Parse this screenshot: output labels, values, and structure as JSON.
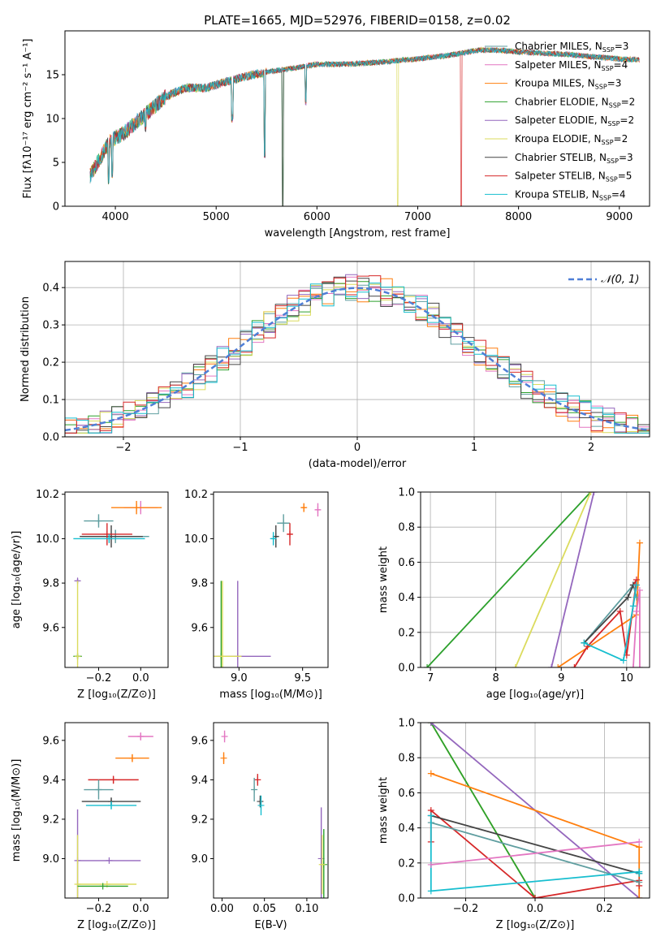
{
  "title": "PLATE=1665, MJD=52976, FIBERID=0158, z=0.02",
  "colors": {
    "Chabrier MILES": "#5f9ea0",
    "Salpeter MILES": "#e377c2",
    "Kroupa MILES": "#ff7f0e",
    "Chabrier ELODIE": "#2ca02c",
    "Salpeter ELODIE": "#9467bd",
    "Kroupa ELODIE": "#dbdb5d",
    "Chabrier STELIB": "#444444",
    "Salpeter STELIB": "#d62728",
    "Kroupa STELIB": "#17becf",
    "gaussian": "#4f7fd6"
  },
  "series_names": [
    "Chabrier MILES",
    "Salpeter MILES",
    "Kroupa MILES",
    "Chabrier ELODIE",
    "Salpeter ELODIE",
    "Kroupa ELODIE",
    "Chabrier STELIB",
    "Salpeter STELIB",
    "Kroupa STELIB"
  ],
  "chart_data": [
    {
      "type": "line",
      "xlabel": "wavelength [Angstrom, rest frame]",
      "ylabel": "Flux [fλ10⁻¹⁷ erg cm⁻² s⁻¹ A⁻¹]",
      "xlim": [
        3500,
        9300
      ],
      "ylim": [
        0,
        20
      ],
      "xticks": [
        4000,
        5000,
        6000,
        7000,
        8000,
        9000
      ],
      "yticks": [
        0,
        5,
        10,
        15
      ],
      "grid": false,
      "legend_position": "right",
      "legend": [
        {
          "name": "Chabrier MILES",
          "label": "Chabrier MILES, N",
          "nssp": "=3"
        },
        {
          "name": "Salpeter MILES",
          "label": "Salpeter MILES, N",
          "nssp": "=4"
        },
        {
          "name": "Kroupa MILES",
          "label": "Kroupa MILES, N",
          "nssp": "=3"
        },
        {
          "name": "Chabrier ELODIE",
          "label": "Chabrier ELODIE, N",
          "nssp": "=2"
        },
        {
          "name": "Salpeter ELODIE",
          "label": "Salpeter ELODIE, N",
          "nssp": "=2"
        },
        {
          "name": "Kroupa ELODIE",
          "label": "Kroupa ELODIE, N",
          "nssp": "=2"
        },
        {
          "name": "Chabrier STELIB",
          "label": "Chabrier STELIB, N",
          "nssp": "=3"
        },
        {
          "name": "Salpeter STELIB",
          "label": "Salpeter STELIB, N",
          "nssp": "=5"
        },
        {
          "name": "Kroupa STELIB",
          "label": "Kroupa STELIB, N",
          "nssp": "=4"
        }
      ],
      "continuum": [
        [
          3750,
          3.5
        ],
        [
          3850,
          5.5
        ],
        [
          3950,
          7.5
        ],
        [
          4000,
          7.8
        ],
        [
          4100,
          8.5
        ],
        [
          4300,
          10.5
        ],
        [
          4500,
          12.5
        ],
        [
          4700,
          13.5
        ],
        [
          4900,
          13.5
        ],
        [
          5100,
          14.2
        ],
        [
          5300,
          14.8
        ],
        [
          5500,
          15.3
        ],
        [
          5800,
          15.8
        ],
        [
          6000,
          16.2
        ],
        [
          6300,
          16.2
        ],
        [
          6600,
          16.4
        ],
        [
          7000,
          16.8
        ],
        [
          7300,
          17.2
        ],
        [
          7600,
          17.8
        ],
        [
          7800,
          17.8
        ],
        [
          8000,
          17.6
        ],
        [
          8500,
          17.3
        ],
        [
          9000,
          16.8
        ],
        [
          9200,
          16.7
        ]
      ],
      "dips": [
        {
          "x": 5160,
          "y": 9.5
        },
        {
          "x": 5480,
          "y": 5.5
        },
        {
          "x": 5660,
          "y": 0.0
        },
        {
          "x": 6800,
          "y": 0.0
        },
        {
          "x": 7430,
          "y": 0.0
        },
        {
          "x": 3935,
          "y": 2.5
        },
        {
          "x": 3970,
          "y": 3.0
        },
        {
          "x": 4300,
          "y": 8.5
        },
        {
          "x": 5890,
          "y": 11.5
        }
      ]
    },
    {
      "type": "histogram",
      "xlabel": "(data-model)/error",
      "ylabel": "Normed distribution",
      "xlim": [
        -2.5,
        2.5
      ],
      "ylim": [
        0,
        0.47
      ],
      "xticks": [
        -2,
        -1,
        0,
        1,
        2
      ],
      "yticks": [
        0.0,
        0.1,
        0.2,
        0.3,
        0.4
      ],
      "grid": true,
      "legend": "𝒩(0, 1)",
      "bin_width": 0.1,
      "gaussian": {
        "mean": 0,
        "sigma": 1
      }
    },
    {
      "type": "errorbar",
      "xlabel": "Z [log₁₀(Z/Z⊙)]",
      "ylabel": "age  [log₁₀(age/yr)]",
      "xlim": [
        -0.36,
        0.13
      ],
      "ylim": [
        9.42,
        10.21
      ],
      "xticks": [
        -0.2,
        0.0
      ],
      "yticks": [
        9.6,
        9.8,
        10.0,
        10.2
      ],
      "points": [
        {
          "series": "Chabrier MILES",
          "x": -0.12,
          "xerr": 0.16,
          "y": 10.01,
          "yerr": 0.03
        },
        {
          "series": "Salpeter MILES",
          "x": 0.0,
          "xerr": 0.08,
          "y": 10.14,
          "yerr": 0.03
        },
        {
          "series": "Kroupa MILES",
          "x": -0.02,
          "xerr": 0.12,
          "y": 10.14,
          "yerr": 0.03
        },
        {
          "series": "Chabrier ELODIE",
          "x": -0.3,
          "xerr": 0.02,
          "y": 9.47,
          "yerr": 0.01
        },
        {
          "series": "Salpeter ELODIE",
          "x": -0.3,
          "xerr": 0.0,
          "y": 9.81,
          "yerr": 0.01
        },
        {
          "series": "Kroupa ELODIE",
          "x": -0.3,
          "xerr": 0.0,
          "y": 9.47,
          "yerr": 0.34
        },
        {
          "series": "Chabrier STELIB",
          "x": -0.14,
          "xerr": 0.15,
          "y": 10.01,
          "yerr": 0.05
        },
        {
          "series": "Salpeter STELIB",
          "x": -0.16,
          "xerr": 0.12,
          "y": 10.02,
          "yerr": 0.05
        },
        {
          "series": "Kroupa STELIB",
          "x": -0.15,
          "xerr": 0.17,
          "y": 10.0,
          "yerr": 0.02
        },
        {
          "series": "Chabrier MILES",
          "x": -0.2,
          "xerr": 0.07,
          "y": 10.08,
          "yerr": 0.03
        }
      ]
    },
    {
      "type": "errorbar",
      "xlabel": "mass [log₁₀(M/M⊙)]",
      "xlim": [
        8.8,
        9.7
      ],
      "ylim": [
        9.42,
        10.21
      ],
      "xticks": [
        9.0,
        9.5
      ],
      "yticks": [
        9.6,
        9.8,
        10.0,
        10.2
      ],
      "points": [
        {
          "series": "Chabrier MILES",
          "x": 9.35,
          "xerr": 0.05,
          "y": 10.07,
          "yerr": 0.04
        },
        {
          "series": "Salpeter MILES",
          "x": 9.62,
          "xerr": 0.02,
          "y": 10.13,
          "yerr": 0.03
        },
        {
          "series": "Kroupa MILES",
          "x": 9.51,
          "xerr": 0.02,
          "y": 10.14,
          "yerr": 0.02
        },
        {
          "series": "Chabrier ELODIE",
          "x": 8.86,
          "xerr": 0.01,
          "y": 9.47,
          "yerr": 0.34
        },
        {
          "series": "Salpeter ELODIE",
          "x": 8.99,
          "xerr": 0.26,
          "y": 9.47,
          "yerr": 0.34
        },
        {
          "series": "Kroupa ELODIE",
          "x": 8.87,
          "xerr": 0.15,
          "y": 9.47,
          "yerr": 0.34
        },
        {
          "series": "Chabrier STELIB",
          "x": 9.29,
          "xerr": 0.02,
          "y": 10.01,
          "yerr": 0.05
        },
        {
          "series": "Salpeter STELIB",
          "x": 9.4,
          "xerr": 0.02,
          "y": 10.02,
          "yerr": 0.05
        },
        {
          "series": "Kroupa STELIB",
          "x": 9.27,
          "xerr": 0.02,
          "y": 10.0,
          "yerr": 0.03
        }
      ]
    },
    {
      "type": "line",
      "xlabel": "age  [log₁₀(age/yr)]",
      "ylabel": "mass weight",
      "xlim": [
        6.85,
        10.35
      ],
      "ylim": [
        0,
        1
      ],
      "xticks": [
        7,
        8,
        9,
        10
      ],
      "yticks": [
        0.0,
        0.2,
        0.4,
        0.6,
        0.8,
        1.0
      ],
      "grid": true,
      "series": [
        {
          "name": "Chabrier ELODIE",
          "x": [
            6.95,
            9.45
          ],
          "y": [
            0.0,
            1.0
          ]
        },
        {
          "name": "Kroupa ELODIE",
          "x": [
            8.3,
            9.45
          ],
          "y": [
            0.0,
            1.0
          ]
        },
        {
          "name": "Salpeter ELODIE",
          "x": [
            8.85,
            9.5
          ],
          "y": [
            0.0,
            1.0
          ]
        },
        {
          "name": "Kroupa MILES",
          "x": [
            8.95,
            10.15,
            10.2
          ],
          "y": [
            0.0,
            0.3,
            0.71
          ]
        },
        {
          "name": "Salpeter STELIB",
          "x": [
            9.2,
            9.4,
            9.9,
            10.0,
            10.15,
            10.1
          ],
          "y": [
            0.0,
            0.12,
            0.32,
            0.07,
            0.5,
            0.47
          ]
        },
        {
          "name": "Chabrier MILES",
          "x": [
            9.35,
            10.1,
            10.15
          ],
          "y": [
            0.14,
            0.47,
            0.4
          ]
        },
        {
          "name": "Chabrier STELIB",
          "x": [
            9.35,
            10.02,
            10.1
          ],
          "y": [
            0.14,
            0.4,
            0.47
          ]
        },
        {
          "name": "Kroupa STELIB",
          "x": [
            9.35,
            9.95,
            10.1,
            10.15
          ],
          "y": [
            0.14,
            0.04,
            0.35,
            0.47
          ]
        },
        {
          "name": "Salpeter MILES",
          "x": [
            10.1,
            10.15,
            10.2,
            10.2
          ],
          "y": [
            0.0,
            0.32,
            0.44,
            0.0
          ]
        }
      ]
    },
    {
      "type": "errorbar",
      "xlabel": "Z [log₁₀(Z/Z⊙)]",
      "ylabel": "mass [log₁₀(M/M⊙)]",
      "xlim": [
        -0.36,
        0.13
      ],
      "ylim": [
        8.8,
        9.69
      ],
      "xticks": [
        -0.2,
        0.0
      ],
      "yticks": [
        9.0,
        9.2,
        9.4,
        9.6
      ],
      "points": [
        {
          "series": "Salpeter MILES",
          "x": 0.0,
          "xerr": 0.06,
          "y": 9.62,
          "yerr": 0.02
        },
        {
          "series": "Kroupa MILES",
          "x": -0.04,
          "xerr": 0.08,
          "y": 9.51,
          "yerr": 0.02
        },
        {
          "series": "Salpeter STELIB",
          "x": -0.13,
          "xerr": 0.12,
          "y": 9.4,
          "yerr": 0.02
        },
        {
          "series": "Chabrier MILES",
          "x": -0.2,
          "xerr": 0.07,
          "y": 9.35,
          "yerr": 0.05
        },
        {
          "series": "Chabrier STELIB",
          "x": -0.14,
          "xerr": 0.14,
          "y": 9.29,
          "yerr": 0.02
        },
        {
          "series": "Kroupa STELIB",
          "x": -0.14,
          "xerr": 0.12,
          "y": 9.27,
          "yerr": 0.02
        },
        {
          "series": "Salpeter ELODIE",
          "x": -0.3,
          "xerr": 0.0,
          "y": 8.99,
          "yerr": 0.26
        },
        {
          "series": "Salpeter ELODIE",
          "x": -0.15,
          "xerr": 0.15,
          "y": 8.99,
          "yerr": 0.0
        },
        {
          "series": "Kroupa ELODIE",
          "x": -0.3,
          "xerr": 0.0,
          "y": 8.87,
          "yerr": 0.25
        },
        {
          "series": "Kroupa ELODIE",
          "x": -0.16,
          "xerr": 0.14,
          "y": 8.87,
          "yerr": 0.0
        },
        {
          "series": "Chabrier ELODIE",
          "x": -0.18,
          "xerr": 0.12,
          "y": 8.86,
          "yerr": 0.0
        }
      ]
    },
    {
      "type": "errorbar",
      "xlabel": "E(B-V)",
      "xlim": [
        -0.01,
        0.125
      ],
      "ylim": [
        8.8,
        9.69
      ],
      "xticks": [
        0.0,
        0.05,
        0.1
      ],
      "xticklabels": [
        "0.00",
        "0.05",
        "0.10"
      ],
      "yticks": [
        9.0,
        9.2,
        9.4,
        9.6
      ],
      "points": [
        {
          "series": "Salpeter MILES",
          "x": 0.003,
          "y": 9.62,
          "yerr": 0.03
        },
        {
          "series": "Kroupa MILES",
          "x": 0.002,
          "y": 9.51,
          "yerr": 0.03
        },
        {
          "series": "Salpeter STELIB",
          "x": 0.042,
          "y": 9.4,
          "yerr": 0.03
        },
        {
          "series": "Chabrier MILES",
          "x": 0.038,
          "y": 9.35,
          "yerr": 0.06
        },
        {
          "series": "Chabrier STELIB",
          "x": 0.045,
          "y": 9.29,
          "yerr": 0.03
        },
        {
          "series": "Kroupa STELIB",
          "x": 0.046,
          "y": 9.27,
          "yerr": 0.05
        },
        {
          "series": "Salpeter ELODIE",
          "x": 0.117,
          "y": 9.0,
          "yerr": 0.26
        },
        {
          "series": "Chabrier ELODIE",
          "x": 0.12,
          "y": 8.97,
          "yerr": 0.18
        },
        {
          "series": "Kroupa ELODIE",
          "x": 0.118,
          "y": 8.97,
          "yerr": 0.15
        }
      ]
    },
    {
      "type": "line",
      "xlabel": "Z [log₁₀(Z/Z⊙)]",
      "ylabel": "mass weight",
      "xlim": [
        -0.33,
        0.33
      ],
      "ylim": [
        0,
        1
      ],
      "xticks": [
        -0.2,
        0.0,
        0.2
      ],
      "yticks": [
        0.0,
        0.2,
        0.4,
        0.6,
        0.8,
        1.0
      ],
      "grid": true,
      "series": [
        {
          "name": "Kroupa ELODIE",
          "x": [
            -0.3,
            0.0
          ],
          "y": [
            1.0,
            0.0
          ]
        },
        {
          "name": "Chabrier ELODIE",
          "x": [
            -0.3,
            0.0
          ],
          "y": [
            1.0,
            0.0
          ]
        },
        {
          "name": "Salpeter ELODIE",
          "x": [
            -0.3,
            0.3
          ],
          "y": [
            1.0,
            0.0
          ]
        },
        {
          "name": "Kroupa MILES",
          "x": [
            -0.3,
            0.3,
            0.3
          ],
          "y": [
            0.71,
            0.29,
            0.0
          ]
        },
        {
          "name": "Salpeter STELIB",
          "x": [
            -0.3,
            -0.3,
            0.0,
            0.3,
            0.3
          ],
          "y": [
            0.32,
            0.5,
            0.0,
            0.1,
            0.07
          ]
        },
        {
          "name": "Chabrier STELIB",
          "x": [
            -0.3,
            0.3
          ],
          "y": [
            0.47,
            0.14
          ]
        },
        {
          "name": "Chabrier MILES",
          "x": [
            -0.3,
            0.3
          ],
          "y": [
            0.43,
            0.09
          ]
        },
        {
          "name": "Kroupa STELIB",
          "x": [
            -0.3,
            -0.3,
            0.3,
            0.3
          ],
          "y": [
            0.47,
            0.04,
            0.15,
            0.14
          ]
        },
        {
          "name": "Salpeter MILES",
          "x": [
            -0.3,
            0.3
          ],
          "y": [
            0.19,
            0.32
          ]
        }
      ]
    }
  ]
}
